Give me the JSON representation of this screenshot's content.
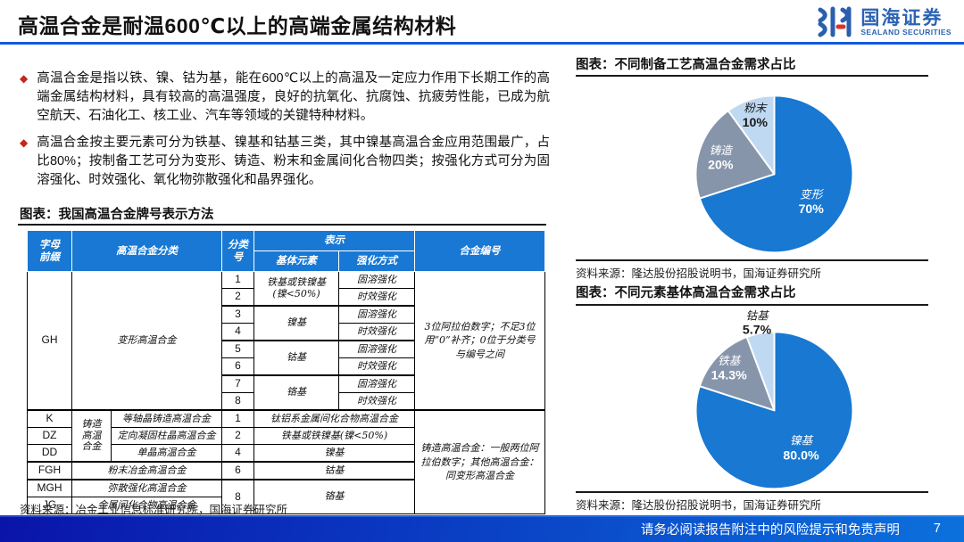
{
  "header": {
    "title": "高温合金是耐温600℃以上的高端金属结构材料",
    "logo": {
      "name": "国海证券",
      "subtitle": "SEALAND SECURITIES"
    }
  },
  "bullets": [
    "高温合金是指以铁、镍、钴为基，能在600℃以上的高温及一定应力作用下长期工作的高端金属结构材料，具有较高的高温强度，良好的抗氧化、抗腐蚀、抗疲劳性能，已成为航空航天、石油化工、核工业、汽车等领域的关键特种材料。",
    "高温合金按主要元素可分为铁基、镍基和钴基三类，其中镍基高温合金应用范围最广，占比80%；按制备工艺可分为变形、铸造、粉末和金属间化合物四类；按强化方式可分为固溶强化、时效强化、氧化物弥散强化和晶界强化。"
  ],
  "left_figure": {
    "caption": "图表：我国高温合金牌号表示方法",
    "source": "资料来源：冶金工业信息标准研究院，国海证券研究所"
  },
  "table": {
    "header": [
      [
        {
          "t": "字母\n前缀",
          "rs": 2
        },
        {
          "t": "高温合金分类",
          "rs": 2,
          "cs": 2
        },
        {
          "t": "分类\n号",
          "rs": 2
        },
        {
          "t": "表示",
          "cs": 2
        },
        {
          "t": "合金编号",
          "rs": 2
        }
      ],
      [
        {
          "t": "基体元素"
        },
        {
          "t": "强化方式"
        }
      ]
    ],
    "body": [
      {
        "c": [
          {
            "t": "GH",
            "rs": 8,
            "cls": "code"
          },
          {
            "t": "变形高温合金",
            "rs": 8,
            "cs": 2
          },
          {
            "t": "1",
            "cls": "code"
          },
          {
            "t": "铁基或铁镍基\n(镍<50%)",
            "rs": 2
          },
          {
            "t": "固溶强化"
          },
          {
            "t": "3位阿拉伯数字；不足3位用“0”补齐；0位于分类号与编号之间",
            "rs": 8,
            "cls": "note"
          }
        ]
      },
      {
        "c": [
          {
            "t": "2",
            "cls": "code"
          },
          {
            "t": "时效强化"
          }
        ]
      },
      {
        "cls": "g",
        "c": [
          {
            "t": "3",
            "cls": "code"
          },
          {
            "t": "镍基",
            "rs": 2
          },
          {
            "t": "固溶强化"
          }
        ]
      },
      {
        "c": [
          {
            "t": "4",
            "cls": "code"
          },
          {
            "t": "时效强化"
          }
        ]
      },
      {
        "cls": "g",
        "c": [
          {
            "t": "5",
            "cls": "code"
          },
          {
            "t": "钴基",
            "rs": 2
          },
          {
            "t": "固溶强化"
          }
        ]
      },
      {
        "c": [
          {
            "t": "6",
            "cls": "code"
          },
          {
            "t": "时效强化"
          }
        ]
      },
      {
        "cls": "g",
        "c": [
          {
            "t": "7",
            "cls": "code"
          },
          {
            "t": "铬基",
            "rs": 2
          },
          {
            "t": "固溶强化"
          }
        ]
      },
      {
        "c": [
          {
            "t": "8",
            "cls": "code"
          },
          {
            "t": "时效强化"
          }
        ]
      },
      {
        "cls": "g",
        "c": [
          {
            "t": "K",
            "cls": "code"
          },
          {
            "t": "铸造\n高温\n合金",
            "rs": 3
          },
          {
            "t": "等轴晶铸造高温合金"
          },
          {
            "t": "1",
            "cls": "code"
          },
          {
            "t": "钛铝系金属间化合物高温合金",
            "cs": 2
          },
          {
            "t": "铸造高温合金：一般两位阿拉伯数字；其他高温合金：同变形高温合金",
            "rs": 6,
            "cls": "note"
          }
        ]
      },
      {
        "c": [
          {
            "t": "DZ",
            "cls": "code"
          },
          {
            "t": "定向凝固柱晶高温合金"
          },
          {
            "t": "2",
            "cls": "code"
          },
          {
            "t": "铁基或铁镍基(镍<50%)",
            "cs": 2
          }
        ]
      },
      {
        "c": [
          {
            "t": "DD",
            "cls": "code"
          },
          {
            "t": "单晶高温合金"
          },
          {
            "t": "4",
            "cls": "code"
          },
          {
            "t": "镍基",
            "cs": 2
          }
        ]
      },
      {
        "cls": "g",
        "c": [
          {
            "t": "FGH",
            "cls": "code"
          },
          {
            "t": "粉末冶金高温合金",
            "cs": 2
          },
          {
            "t": "6",
            "cls": "code"
          },
          {
            "t": "钴基",
            "cs": 2
          }
        ]
      },
      {
        "cls": "g",
        "c": [
          {
            "t": "MGH",
            "cls": "code"
          },
          {
            "t": "弥散强化高温合金",
            "cs": 2
          },
          {
            "t": "8",
            "rs": 2,
            "cls": "code"
          },
          {
            "t": "铬基",
            "cs": 2,
            "rs": 2
          }
        ]
      },
      {
        "c": [
          {
            "t": "JG",
            "cls": "code"
          },
          {
            "t": "金属间化合物高温合金",
            "cs": 2
          }
        ]
      }
    ]
  },
  "chart_data": [
    {
      "type": "pie",
      "title": "图表：不同制备工艺高温合金需求占比",
      "source": "资料来源：隆达股份招股说明书，国海证券研究所",
      "start_angle_deg": 0,
      "direction": "clockwise",
      "slices": [
        {
          "label": "变形",
          "value": 70,
          "pct_label": "70%",
          "color": "#1878D2",
          "text_color": "#FFFFFF",
          "label_pos": "inside"
        },
        {
          "label": "铸造",
          "value": 20,
          "pct_label": "20%",
          "color": "#8795AB",
          "text_color": "#FFFFFF",
          "label_pos": "inside"
        },
        {
          "label": "粉末",
          "value": 10,
          "pct_label": "10%",
          "color": "#BFD9F2",
          "text_color": "#1A1A1A",
          "label_pos": "inside"
        }
      ]
    },
    {
      "type": "pie",
      "title": "图表：不同元素基体高温合金需求占比",
      "source": "资料来源：隆达股份招股说明书，国海证券研究所",
      "start_angle_deg": 0,
      "direction": "clockwise",
      "slices": [
        {
          "label": "镍基",
          "value": 80,
          "pct_label": "80.0%",
          "color": "#1878D2",
          "text_color": "#FFFFFF",
          "label_pos": "inside"
        },
        {
          "label": "铁基",
          "value": 14.3,
          "pct_label": "14.3%",
          "color": "#8795AB",
          "text_color": "#FFFFFF",
          "label_pos": "inside"
        },
        {
          "label": "钴基",
          "value": 5.7,
          "pct_label": "5.7%",
          "color": "#BFD9F2",
          "text_color": "#1A1A1A",
          "label_pos": "outside"
        }
      ]
    }
  ],
  "footer": {
    "disclaimer": "请务必阅读报告附注中的风险提示和免责声明",
    "page": "7"
  },
  "colors": {
    "accent_blue": "#1659E0",
    "table_header_blue": "#1878D3",
    "bullet_red": "#C4271D",
    "footer_gradient_start": "#0A14A8",
    "footer_gradient_end": "#0C71DC"
  }
}
